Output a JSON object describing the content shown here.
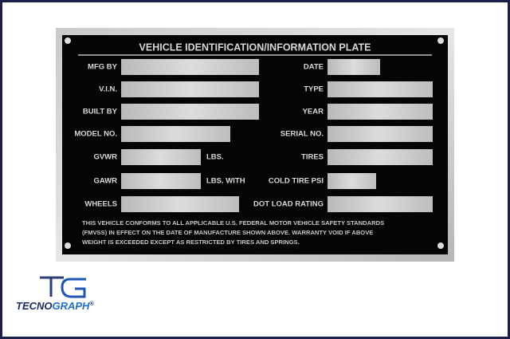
{
  "plate": {
    "title": "VEHICLE IDENTIFICATION/INFORMATION PLATE",
    "left_fields": [
      {
        "label": "MFG BY"
      },
      {
        "label": "V.I.N."
      },
      {
        "label": "BUILT BY"
      },
      {
        "label": "MODEL NO."
      },
      {
        "label": "GVWR",
        "unit": "LBS."
      },
      {
        "label": "GAWR",
        "unit": "LBS. WITH"
      },
      {
        "label": "WHEELS"
      }
    ],
    "right_fields": [
      {
        "label": "DATE"
      },
      {
        "label": "TYPE"
      },
      {
        "label": "YEAR"
      },
      {
        "label": "SERIAL NO."
      },
      {
        "label": "TIRES"
      },
      {
        "label": "COLD TIRE PSI"
      },
      {
        "label": "DOT LOAD RATING"
      }
    ],
    "disclaimer": [
      "THIS VEHICLE CONFORMS TO ALL APPLICABLE U.S. FEDERAL MOTOR VEHICLE SAFETY STANDARDS",
      "(FMVSS) IN EFFECT ON THE DATE OF MANUFACTURE SHOWN ABOVE. WARRANTY VOID IF ABOVE",
      "WEIGHT IS EXCEEDED EXCEPT AS RESTRICTED BY TIRES AND SPRINGS."
    ]
  },
  "logo": {
    "part1": "TECNO",
    "part2": "GRAPH",
    "mark": "®"
  }
}
